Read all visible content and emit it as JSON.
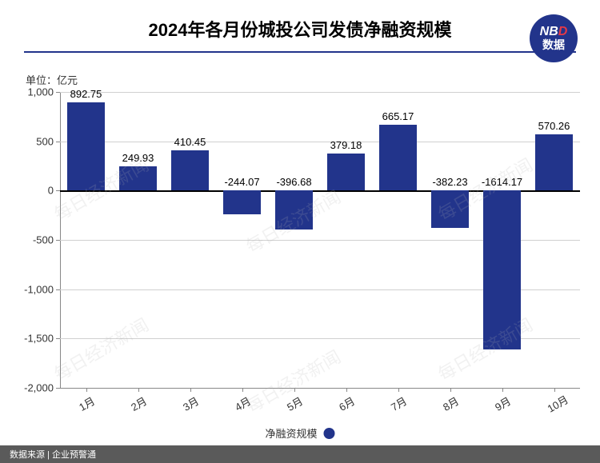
{
  "title": "2024年各月份城投公司发债净融资规模",
  "title_fontsize": 22,
  "title_color": "#000000",
  "underline_color": "#22348b",
  "badge": {
    "line1_n": "N",
    "line1_b": "B",
    "line1_d": "D",
    "line2": "数据",
    "bg": "#22348b",
    "d_color": "#e63946"
  },
  "unit_label": "单位：亿元",
  "chart": {
    "type": "bar",
    "categories": [
      "1月",
      "2月",
      "3月",
      "4月",
      "5月",
      "6月",
      "7月",
      "8月",
      "9月",
      "10月"
    ],
    "values": [
      892.75,
      249.93,
      410.45,
      -244.07,
      -396.68,
      379.18,
      665.17,
      -382.23,
      -1614.17,
      570.26
    ],
    "bar_color": "#22348b",
    "ylim_min": -2000,
    "ylim_max": 1000,
    "ytick_step": 500,
    "yticks": [
      1000,
      500,
      0,
      -500,
      -1000,
      -1500,
      -2000
    ],
    "ytick_labels": [
      "1,000",
      "500",
      "0",
      "-500",
      "-1,000",
      "-1,500",
      "-2,000"
    ],
    "grid_color": "#d0d0d0",
    "axis_color": "#888888",
    "background_color": "#ffffff",
    "bar_width_ratio": 0.72,
    "label_fontsize": 13,
    "x_label_rotation": -30
  },
  "legend": {
    "label": "净融资规模",
    "color": "#22348b"
  },
  "footer": {
    "text": "数据来源 | 企业预警通",
    "bg": "#5a5a5a",
    "color": "#ffffff"
  },
  "watermark_text": "每日经济新闻"
}
